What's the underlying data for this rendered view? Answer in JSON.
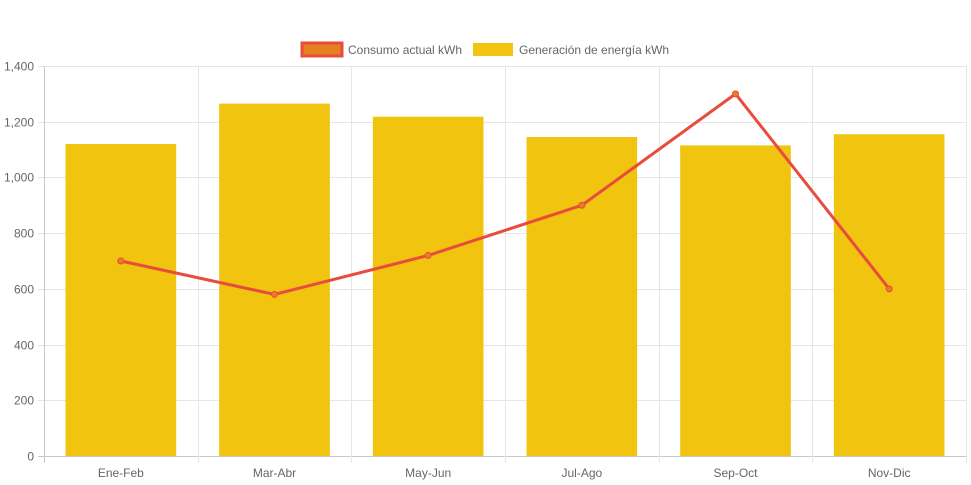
{
  "chart_data": {
    "type": "bar",
    "categories": [
      "Ene-Feb",
      "Mar-Abr",
      "May-Jun",
      "Jul-Ago",
      "Sep-Oct",
      "Nov-Dic"
    ],
    "series": [
      {
        "name": "Consumo actual kWh",
        "type": "line",
        "values": [
          700,
          580,
          720,
          900,
          1300,
          600
        ],
        "color": "#E74C3C",
        "legend_fill": "#E67E22"
      },
      {
        "name": "Generación de energía kWh",
        "type": "bar",
        "values": [
          1120,
          1265,
          1218,
          1145,
          1115,
          1155
        ],
        "color": "#F1C40F"
      }
    ],
    "ylim": [
      0,
      1400
    ],
    "yticks": [
      0,
      200,
      400,
      600,
      800,
      1000,
      1200,
      1400
    ],
    "ytick_labels": [
      "0",
      "200",
      "400",
      "600",
      "800",
      "1,000",
      "1,200",
      "1,400"
    ],
    "grid": true,
    "legend_position": "top-center"
  }
}
